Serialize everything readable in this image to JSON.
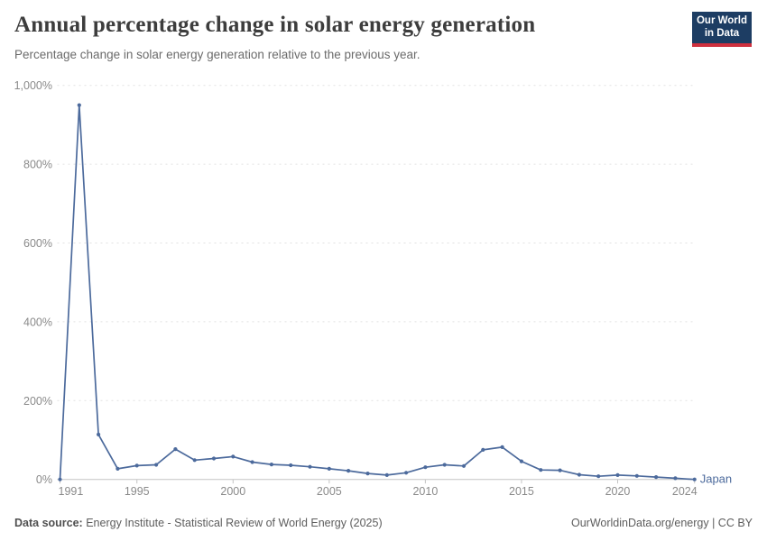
{
  "logo": {
    "line1": "Our World",
    "line2": "in Data"
  },
  "chart_data": {
    "type": "line",
    "title": "Annual percentage change in solar energy generation",
    "subtitle": "Percentage change in solar energy generation relative to the previous year.",
    "xlabel": "",
    "ylabel": "",
    "ylim": [
      0,
      1000
    ],
    "yticks": [
      0,
      200,
      400,
      600,
      800,
      1000
    ],
    "ytick_labels": [
      "0%",
      "200%",
      "400%",
      "600%",
      "800%",
      "1,000%"
    ],
    "xticks": [
      1991,
      1995,
      2000,
      2005,
      2010,
      2015,
      2020,
      2024
    ],
    "grid": "horizontal-dashed",
    "legend_position": "end-of-line",
    "series": [
      {
        "name": "Japan",
        "color": "#4C6A9C",
        "years": [
          1991,
          1992,
          1993,
          1994,
          1995,
          1996,
          1997,
          1998,
          1999,
          2000,
          2001,
          2002,
          2003,
          2004,
          2005,
          2006,
          2007,
          2008,
          2009,
          2010,
          2011,
          2012,
          2013,
          2014,
          2015,
          2016,
          2017,
          2018,
          2019,
          2020,
          2021,
          2022,
          2023,
          2024
        ],
        "values": [
          0,
          950,
          114,
          27,
          35,
          37,
          77,
          49,
          53,
          58,
          44,
          38,
          36,
          32,
          27,
          22,
          15,
          11,
          17,
          31,
          37,
          34,
          75,
          82,
          46,
          24,
          23,
          12,
          8,
          11,
          9,
          6,
          3,
          0
        ]
      }
    ]
  },
  "footer": {
    "datasource_label": "Data source:",
    "datasource_text": "Energy Institute - Statistical Review of World Energy (2025)",
    "credit": "OurWorldinData.org/energy | CC BY"
  },
  "colors": {
    "accent": "#4C6A9C",
    "grid": "#e2e2e2",
    "axis": "#c4c4c4",
    "tick_text": "#8a8a8a",
    "logo_bg": "#1d3d63",
    "logo_stripe": "#cf303e"
  }
}
